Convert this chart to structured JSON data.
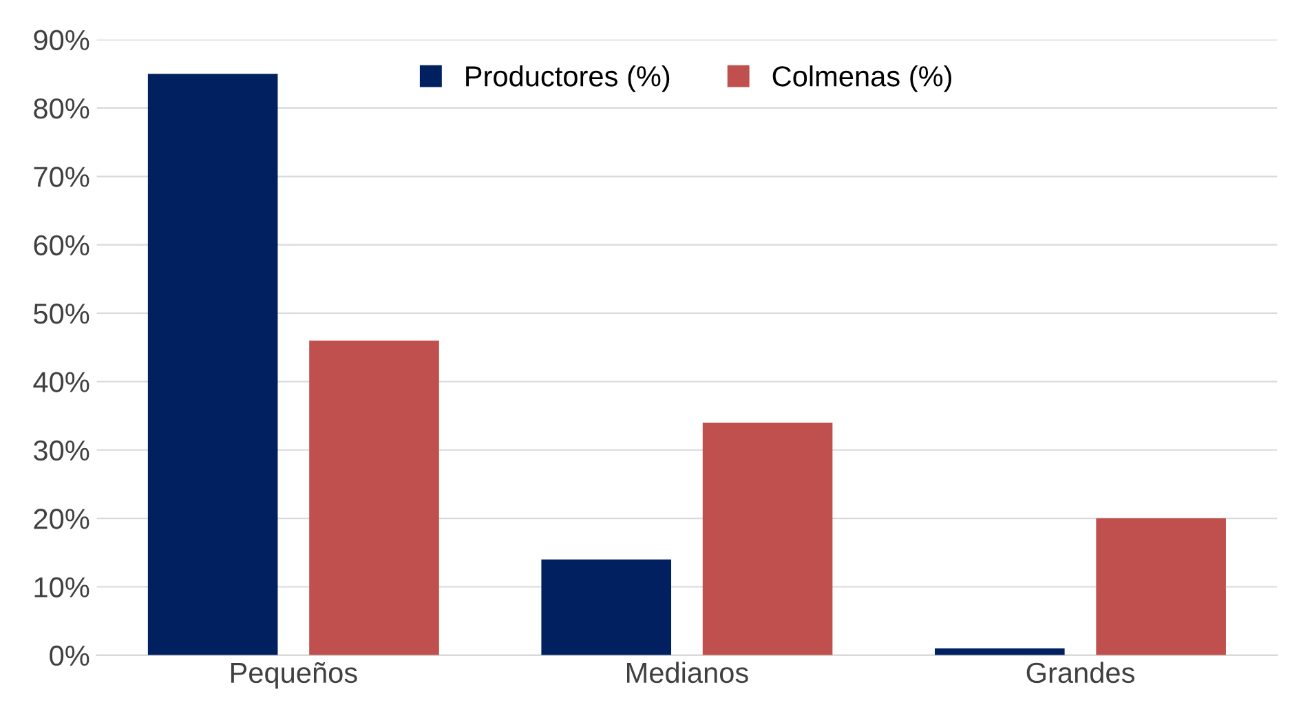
{
  "chart_data": {
    "type": "bar",
    "categories": [
      "Pequeños",
      "Medianos",
      "Grandes"
    ],
    "series": [
      {
        "name": "Productores (%)",
        "color": "#002060",
        "values": [
          85,
          14,
          1
        ]
      },
      {
        "name": "Colmenas (%)",
        "color": "#c0504d",
        "values": [
          46,
          34,
          20
        ]
      }
    ],
    "ylim": [
      0,
      90
    ],
    "yticks": [
      {
        "value": 0,
        "label": "0%"
      },
      {
        "value": 10,
        "label": "10%"
      },
      {
        "value": 20,
        "label": "20%"
      },
      {
        "value": 30,
        "label": "30%"
      },
      {
        "value": 40,
        "label": "40%"
      },
      {
        "value": 50,
        "label": "50%"
      },
      {
        "value": 60,
        "label": "60%"
      },
      {
        "value": 70,
        "label": "70%"
      },
      {
        "value": 80,
        "label": "80%"
      },
      {
        "value": 90,
        "label": "90%"
      }
    ],
    "grid": "y",
    "legend": "top"
  }
}
